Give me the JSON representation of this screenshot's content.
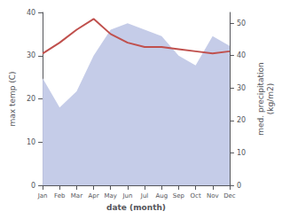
{
  "chart_data": {
    "type": "line",
    "categories": [
      "Jan",
      "Feb",
      "Mar",
      "Apr",
      "May",
      "Jun",
      "Jul",
      "Aug",
      "Sep",
      "Oct",
      "Nov",
      "Dec"
    ],
    "series": [
      {
        "type": "area",
        "axis": "y2",
        "color": "#c5cce8",
        "values": [
          33,
          24,
          29,
          40,
          48,
          50,
          48,
          46,
          40,
          37,
          46,
          43
        ]
      },
      {
        "type": "line",
        "color": "#c0504d",
        "values": [
          30.5,
          33.0,
          36.0,
          38.5,
          35.0,
          33.0,
          32.0,
          32.0,
          31.5,
          31.0,
          30.5,
          31.0
        ]
      }
    ],
    "xlabel": "date (month)",
    "ylabel": "max temp (C)",
    "y2label": "med. precipitation\n(kg/m2)",
    "ylim": [
      0,
      40
    ],
    "yticks": [
      0,
      10,
      20,
      30,
      40
    ],
    "y2lim": [
      0,
      53.33
    ],
    "y2ticks": [
      0,
      10,
      20,
      30,
      40,
      50
    ],
    "grid": false
  }
}
